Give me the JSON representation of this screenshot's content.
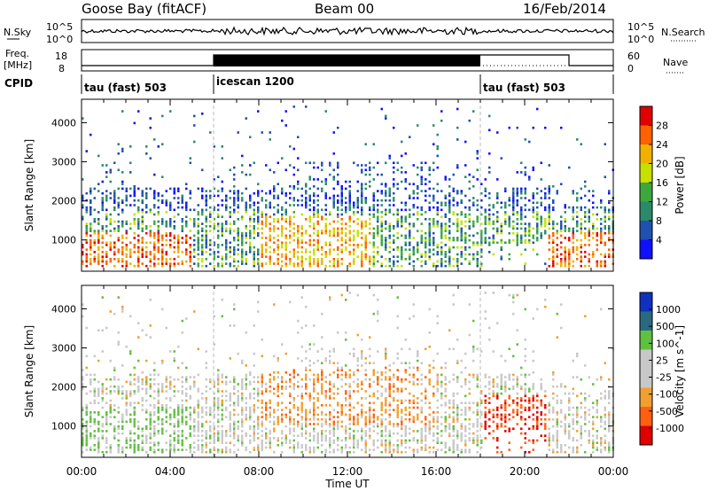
{
  "header": {
    "title_left": "Goose Bay (fitACF)",
    "title_center": "Beam 00",
    "title_right": "16/Feb/2014"
  },
  "panels": {
    "nsky_label": "N.Sky",
    "nsky_ticks": [
      "10^5",
      "10^0"
    ],
    "nsearch_label": "N.Search",
    "nsearch_ticks": [
      "10^5",
      "10^0"
    ],
    "freq_label_line1": "Freq.",
    "freq_label_line2": "[MHz]",
    "freq_ticks": [
      "18",
      "8"
    ],
    "nave_label": "Nave",
    "nave_ticks": [
      "60",
      "0"
    ],
    "cpid_label": "CPID",
    "cpid_segments": [
      "tau (fast) 503",
      "icescan 1200",
      "tau (fast) 503"
    ]
  },
  "chart_data": [
    {
      "type": "heatmap",
      "title": "",
      "xlabel": "",
      "ylabel": "Slant Range [km]",
      "ylim": [
        200,
        4600
      ],
      "x_tick_labels": [
        "00:00",
        "04:00",
        "08:00",
        "12:00",
        "16:00",
        "20:00",
        "00:00"
      ],
      "y_ticks": [
        1000,
        2000,
        3000,
        4000
      ],
      "colorbar": {
        "label": "Power [dB]",
        "ticks": [
          "28",
          "24",
          "20",
          "16",
          "12",
          "8",
          "4"
        ],
        "colors": [
          "#e00000",
          "#ff6000",
          "#f0b000",
          "#c8e000",
          "#3ca83c",
          "#2a8a6a",
          "#2050b0",
          "#1010ff"
        ]
      },
      "mode_change_hours": [
        6,
        18
      ]
    },
    {
      "type": "heatmap",
      "title": "",
      "xlabel": "Time UT",
      "ylabel": "Slant Range [km]",
      "ylim": [
        200,
        4600
      ],
      "x_tick_labels": [
        "00:00",
        "04:00",
        "08:00",
        "12:00",
        "16:00",
        "20:00",
        "00:00"
      ],
      "y_ticks": [
        1000,
        2000,
        3000,
        4000
      ],
      "colorbar": {
        "label": "Velocity [m s^-1]",
        "ticks": [
          "1000",
          "500",
          "100",
          "25",
          "-25",
          "-100",
          "-500",
          "-1000"
        ],
        "colors": [
          "#1030c0",
          "#2a6a80",
          "#60c040",
          "#c8c8c8",
          "#c8c8c8",
          "#f0a030",
          "#ff6010",
          "#e00000"
        ]
      },
      "mode_change_hours": [
        6,
        18
      ]
    }
  ]
}
